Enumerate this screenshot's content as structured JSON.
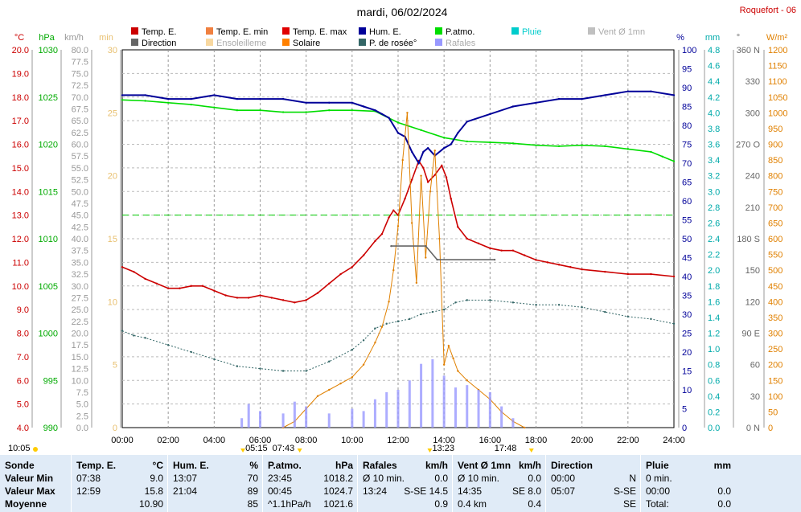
{
  "colors": {
    "temp": "#cc0000",
    "temp_min": "#f08040",
    "temp_max": "#e00000",
    "hum": "#000099",
    "patm": "#00dd00",
    "pluie": "#00cccc",
    "vent": "#8888ee",
    "rafales": "#9999ff",
    "solaire": "#e08000",
    "dew": "#336666",
    "direction": "#666666",
    "ensoleillement": "#f8d8a0",
    "vent_moy": "#c0c0c0"
  },
  "header": {
    "date": "mardi, 06/02/2024",
    "station": "Roquefort - 06"
  },
  "legend": [
    {
      "label": "Temp. E.",
      "color": "#cc0000"
    },
    {
      "label": "Temp. E. min",
      "color": "#f08040"
    },
    {
      "label": "Temp. E. max",
      "color": "#e00000"
    },
    {
      "label": "Hum. E.",
      "color": "#000099"
    },
    {
      "label": "P.atmo.",
      "color": "#00dd00"
    },
    {
      "label": "Pluie",
      "color": "#00cccc"
    },
    {
      "label": "Vent Ø 1mn",
      "color": "#c0c0c0"
    },
    {
      "label": "Direction",
      "color": "#666666"
    },
    {
      "label": "Ensoleilleme",
      "color": "#f8d8a0"
    },
    {
      "label": "Solaire",
      "color": "#ff8000"
    },
    {
      "label": "P. de rosée°",
      "color": "#336666"
    },
    {
      "label": "Rafales",
      "color": "#9999ff"
    }
  ],
  "axes": {
    "temp": {
      "unit": "°C",
      "ticks": [
        "20.0",
        "19.0",
        "18.0",
        "17.0",
        "16.0",
        "15.0",
        "14.0",
        "13.0",
        "12.0",
        "11.0",
        "10.0",
        "9.0",
        "8.0",
        "7.0",
        "6.0",
        "5.0",
        "4.0"
      ]
    },
    "patm": {
      "unit": "hPa",
      "ticks": [
        "1030",
        "1025",
        "1020",
        "1015",
        "1010",
        "1005",
        "1000",
        "995",
        "990"
      ]
    },
    "wind": {
      "unit": "km/h",
      "ticks": [
        "80.0",
        "77.5",
        "75.0",
        "72.5",
        "70.0",
        "67.5",
        "65.0",
        "62.5",
        "60.0",
        "57.5",
        "55.0",
        "52.5",
        "50.0",
        "47.5",
        "45.0",
        "42.5",
        "40.0",
        "37.5",
        "35.0",
        "32.5",
        "30.0",
        "27.5",
        "25.0",
        "22.5",
        "20.0",
        "17.5",
        "15.0",
        "12.5",
        "10.0",
        "7.5",
        "5.0",
        "2.5",
        "0.0"
      ]
    },
    "min": {
      "unit": "min",
      "ticks": [
        "30",
        "25",
        "20",
        "15",
        "10",
        "5",
        "0"
      ]
    },
    "hum": {
      "unit": "%",
      "ticks": [
        "100",
        "95",
        "90",
        "85",
        "80",
        "75",
        "70",
        "65",
        "60",
        "55",
        "50",
        "45",
        "40",
        "35",
        "30",
        "25",
        "20",
        "15",
        "10",
        "5",
        "0"
      ]
    },
    "rain": {
      "unit": "mm",
      "ticks": [
        "4.8",
        "4.6",
        "4.4",
        "4.2",
        "4.0",
        "3.8",
        "3.6",
        "3.4",
        "3.2",
        "3.0",
        "2.8",
        "2.6",
        "2.4",
        "2.2",
        "2.0",
        "1.8",
        "1.6",
        "1.4",
        "1.2",
        "1.0",
        "0.8",
        "0.6",
        "0.4",
        "0.2",
        "0.0"
      ]
    },
    "dir": {
      "unit": "°",
      "ticks": [
        "360 N",
        "330",
        "300",
        "270 O",
        "240",
        "210",
        "180 S",
        "150",
        "120",
        "90 E",
        "60",
        "30",
        "0 N"
      ]
    },
    "solar": {
      "unit": "W/m²",
      "ticks": [
        "1200",
        "1150",
        "1100",
        "1050",
        "1000",
        "950",
        "900",
        "850",
        "800",
        "750",
        "700",
        "650",
        "600",
        "550",
        "500",
        "450",
        "400",
        "350",
        "300",
        "250",
        "200",
        "150",
        "100",
        "50",
        "0"
      ]
    },
    "time": [
      "00:00",
      "02:00",
      "04:00",
      "06:00",
      "08:00",
      "10:00",
      "12:00",
      "14:00",
      "16:00",
      "18:00",
      "20:00",
      "22:00",
      "24:00"
    ]
  },
  "markers": {
    "left_time": "10:05",
    "sunrise": "05:15",
    "temp_min_time": "07:43",
    "solar_max_time": "13:23",
    "sunset": "17:48"
  },
  "chart_data": {
    "type": "line",
    "x_unit": "hours",
    "xlim": [
      0,
      24
    ],
    "series": [
      {
        "name": "Temp. E.",
        "axis": "temp",
        "color": "#cc0000",
        "x": [
          0,
          0.5,
          1,
          1.5,
          2,
          2.5,
          3,
          3.5,
          4,
          4.5,
          5,
          5.5,
          6,
          6.5,
          7,
          7.5,
          8,
          8.5,
          9,
          9.5,
          10,
          10.5,
          11,
          11.3,
          11.6,
          11.8,
          12,
          12.3,
          12.6,
          12.9,
          13.1,
          13.3,
          13.6,
          13.9,
          14.1,
          14.3,
          14.6,
          15,
          15.5,
          16,
          16.5,
          17,
          17.5,
          18,
          18.5,
          19,
          19.5,
          20,
          21,
          22,
          23,
          24
        ],
        "y": [
          10.8,
          10.6,
          10.3,
          10.1,
          9.9,
          9.9,
          10.0,
          10.0,
          9.8,
          9.6,
          9.5,
          9.5,
          9.6,
          9.5,
          9.4,
          9.3,
          9.4,
          9.7,
          10.1,
          10.5,
          10.8,
          11.3,
          11.9,
          12.2,
          12.9,
          13.2,
          13.0,
          13.7,
          14.5,
          15.3,
          15.0,
          14.4,
          14.7,
          15.1,
          14.6,
          13.7,
          12.5,
          12.0,
          11.8,
          11.6,
          11.5,
          11.5,
          11.3,
          11.1,
          11.0,
          10.9,
          10.8,
          10.7,
          10.6,
          10.5,
          10.5,
          10.4
        ]
      },
      {
        "name": "P.atmo.",
        "axis": "patm",
        "color": "#00dd00",
        "x": [
          0,
          1,
          2,
          3,
          4,
          5,
          6,
          7,
          8,
          9,
          10,
          11,
          12,
          13,
          14,
          15,
          16,
          17,
          18,
          19,
          20,
          21,
          22,
          23,
          23.5,
          24
        ],
        "y": [
          1024.7,
          1024.6,
          1024.4,
          1024.2,
          1023.9,
          1023.6,
          1023.6,
          1023.4,
          1023.4,
          1023.6,
          1023.6,
          1023.5,
          1022.3,
          1021.5,
          1020.7,
          1020.3,
          1020.2,
          1020.1,
          1019.9,
          1019.8,
          1019.9,
          1019.8,
          1019.5,
          1019.2,
          1018.7,
          1018.2
        ]
      },
      {
        "name": "Hum. E.",
        "axis": "hum",
        "color": "#000099",
        "x": [
          0,
          1,
          2,
          3,
          4,
          5,
          6,
          7,
          8,
          9,
          10,
          10.5,
          11,
          11.3,
          11.6,
          12,
          12.3,
          12.6,
          12.9,
          13.1,
          13.3,
          13.6,
          14,
          14.3,
          14.6,
          15,
          16,
          17,
          18,
          19,
          20,
          21,
          22,
          23,
          24
        ],
        "y": [
          88,
          88,
          87,
          87,
          88,
          87,
          87,
          87,
          86,
          86,
          86,
          85,
          84,
          83,
          82,
          78,
          77,
          73,
          70,
          73,
          74,
          72,
          74,
          75,
          78,
          81,
          83,
          85,
          86,
          87,
          87,
          88,
          89,
          89,
          88
        ]
      },
      {
        "name": "P. de rosée°",
        "axis": "temp",
        "color": "#336666",
        "x": [
          0,
          0.5,
          1,
          2,
          3,
          4,
          5,
          6,
          7,
          8,
          9,
          10,
          10.5,
          11,
          11.5,
          12,
          12.5,
          13,
          13.5,
          14,
          14.5,
          15,
          16,
          17,
          18,
          19,
          20,
          21,
          22,
          23,
          24
        ],
        "y": [
          8.1,
          7.9,
          7.8,
          7.5,
          7.2,
          6.9,
          6.6,
          6.5,
          6.4,
          6.4,
          6.8,
          7.3,
          7.7,
          8.2,
          8.4,
          8.5,
          8.6,
          8.8,
          8.9,
          9.0,
          9.3,
          9.4,
          9.4,
          9.3,
          9.2,
          9.2,
          9.1,
          8.9,
          8.7,
          8.6,
          8.4
        ]
      },
      {
        "name": "Solaire",
        "axis": "solar",
        "color": "#e08000",
        "x": [
          7,
          7.5,
          8,
          8.5,
          9,
          9.5,
          10,
          10.5,
          11,
          11.3,
          11.6,
          11.8,
          12,
          12.2,
          12.4,
          12.6,
          12.8,
          13,
          13.2,
          13.4,
          13.6,
          13.8,
          14,
          14.2,
          14.4,
          14.6,
          15,
          15.5,
          16,
          16.5,
          17,
          17.5
        ],
        "y": [
          0,
          20,
          60,
          100,
          120,
          140,
          160,
          200,
          270,
          320,
          400,
          500,
          640,
          850,
          1000,
          650,
          460,
          800,
          540,
          750,
          880,
          600,
          200,
          260,
          220,
          180,
          150,
          120,
          90,
          50,
          20,
          0
        ]
      },
      {
        "name": "Rafales",
        "axis": "wind",
        "color": "#9999ff",
        "x": [
          5.2,
          5.5,
          6,
          7,
          7.5,
          8,
          9,
          10,
          10.5,
          11,
          11.5,
          12,
          12.5,
          13,
          13.5,
          14,
          14.5,
          15,
          15.5,
          16,
          16.5,
          17
        ],
        "y": [
          2.0,
          5.0,
          3.5,
          3.0,
          5.5,
          4.5,
          3.0,
          4.0,
          3.5,
          6.0,
          7.5,
          8.0,
          10.0,
          13.5,
          14.5,
          11.0,
          8.5,
          9.0,
          8.0,
          7.5,
          4.5,
          2.0
        ]
      },
      {
        "name": "Direction",
        "axis": "dir",
        "color": "#666666",
        "x": [
          11.7,
          13.2,
          13.7,
          16.2
        ],
        "y": [
          173,
          173,
          160,
          160
        ]
      }
    ],
    "hline": {
      "axis": "temp",
      "value": 13.0,
      "color": "#00cc00"
    }
  },
  "summary": {
    "sonde": {
      "title": "Sonde",
      "rows": [
        "Valeur Min",
        "Valeur Max",
        "Moyenne"
      ]
    },
    "columns": [
      {
        "title": "Temp. E.",
        "unit": "°C",
        "rows": [
          [
            "07:38",
            "9.0"
          ],
          [
            "12:59",
            "15.8"
          ],
          [
            "",
            "10.90"
          ]
        ]
      },
      {
        "title": "Hum. E.",
        "unit": "%",
        "rows": [
          [
            "13:07",
            "70"
          ],
          [
            "21:04",
            "89"
          ],
          [
            "",
            "85"
          ]
        ]
      },
      {
        "title": "P.atmo.",
        "unit": "hPa",
        "rows": [
          [
            "23:45",
            "1018.2"
          ],
          [
            "00:45",
            "1024.7"
          ],
          [
            "^1.1hPa/h",
            "1021.6"
          ]
        ]
      },
      {
        "title": "Rafales",
        "unit": "km/h",
        "rows": [
          [
            "Ø 10 min.",
            "0.0"
          ],
          [
            "13:24",
            "S-SE 14.5"
          ],
          [
            "",
            "0.9"
          ]
        ]
      },
      {
        "title": "Vent Ø 1mn",
        "unit": "km/h",
        "rows": [
          [
            "Ø 10 min.",
            "0.0"
          ],
          [
            "14:35",
            "SE 8.0"
          ],
          [
            "0.4 km",
            "0.4"
          ]
        ]
      },
      {
        "title": "Direction",
        "unit": "",
        "rows": [
          [
            "00:00",
            "N"
          ],
          [
            "05:07",
            "S-SE"
          ],
          [
            "",
            "SE"
          ]
        ]
      },
      {
        "title": "Pluie",
        "unit": "mm",
        "rows": [
          [
            "0 min.",
            ""
          ],
          [
            "00:00",
            "0.0"
          ],
          [
            "Total:",
            "0.0"
          ]
        ]
      }
    ]
  }
}
